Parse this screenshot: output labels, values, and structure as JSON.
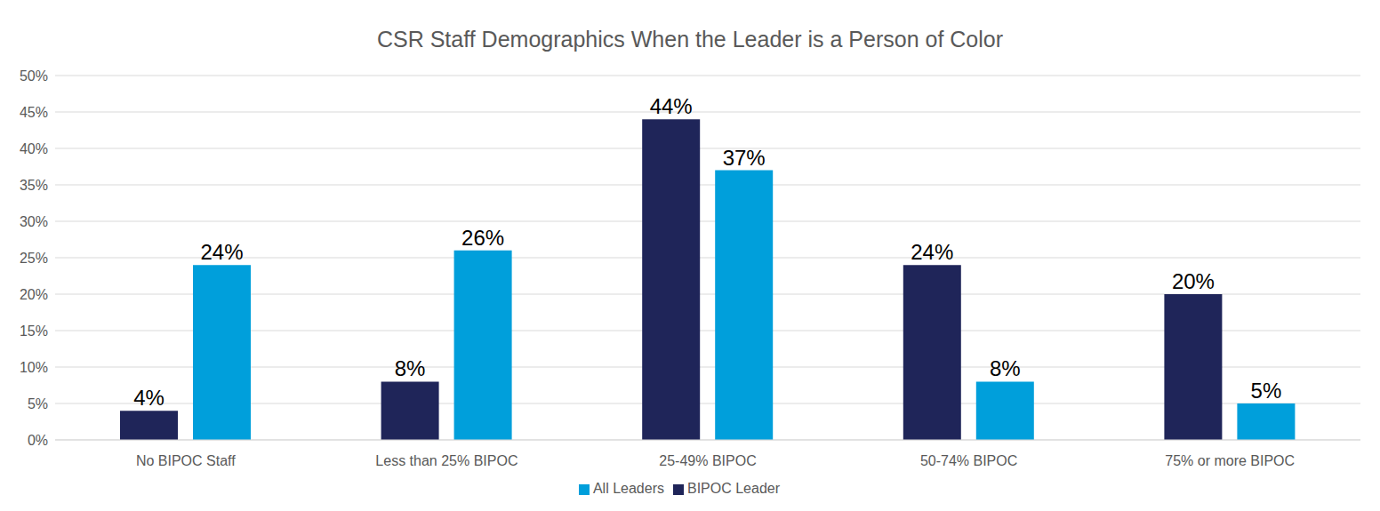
{
  "chart_data": {
    "type": "bar",
    "title": "CSR Staff Demographics When the Leader is a Person of Color",
    "categories": [
      "No BIPOC Staff",
      "Less than 25% BIPOC",
      "25-49% BIPOC",
      "50-74% BIPOC",
      "75% or more BIPOC"
    ],
    "series": [
      {
        "name": "BIPOC Leader",
        "color": "#1f2559",
        "values": [
          4,
          8,
          44,
          24,
          20
        ],
        "value_labels": [
          "4%",
          "8%",
          "44%",
          "24%",
          "20%"
        ]
      },
      {
        "name": "All Leaders",
        "color": "#009fdb",
        "values": [
          24,
          26,
          37,
          8,
          5
        ],
        "value_labels": [
          "24%",
          "26%",
          "37%",
          "8%",
          "5%"
        ]
      }
    ],
    "ylim": [
      0,
      50
    ],
    "yticks": [
      {
        "value": 0,
        "label": "0%"
      },
      {
        "value": 5,
        "label": "5%"
      },
      {
        "value": 10,
        "label": "10%"
      },
      {
        "value": 15,
        "label": "15%"
      },
      {
        "value": 20,
        "label": "20%"
      },
      {
        "value": 25,
        "label": "25%"
      },
      {
        "value": 30,
        "label": "30%"
      },
      {
        "value": 35,
        "label": "35%"
      },
      {
        "value": 40,
        "label": "40%"
      },
      {
        "value": 45,
        "label": "45%"
      },
      {
        "value": 50,
        "label": "50%"
      }
    ],
    "grid": true,
    "legend": "bottom",
    "data_labels": true
  }
}
